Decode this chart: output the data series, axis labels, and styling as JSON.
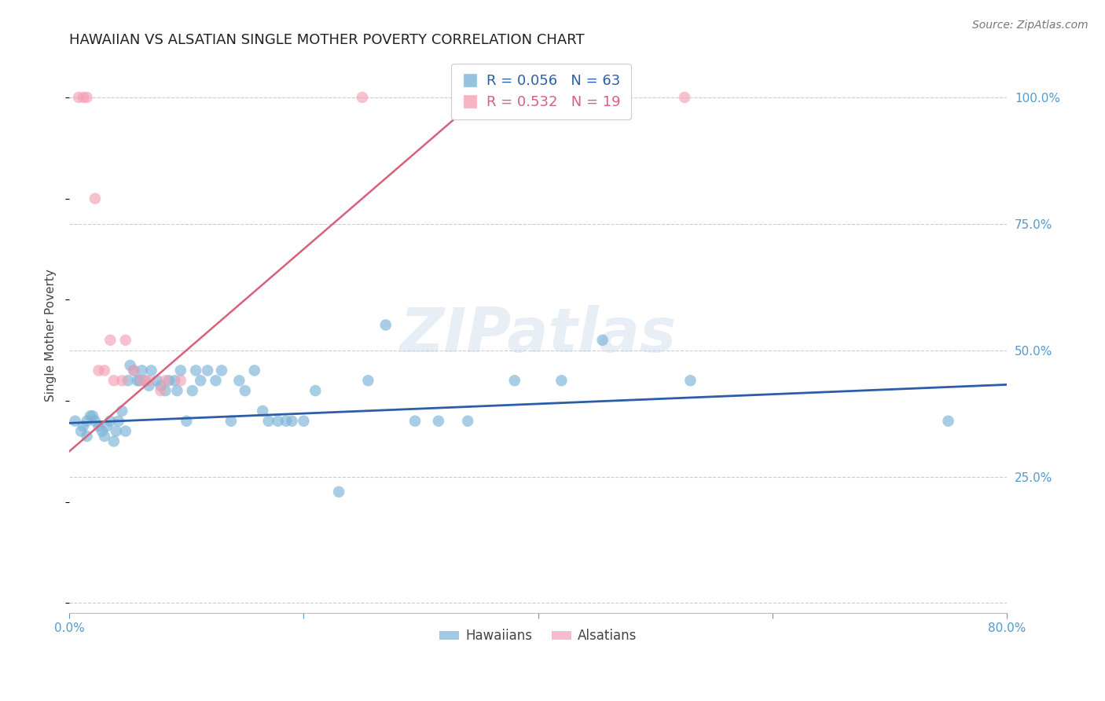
{
  "title": "HAWAIIAN VS ALSATIAN SINGLE MOTHER POVERTY CORRELATION CHART",
  "source": "Source: ZipAtlas.com",
  "ylabel": "Single Mother Poverty",
  "watermark": "ZIPatlas",
  "xlim": [
    0.0,
    0.8
  ],
  "ylim": [
    -0.02,
    1.08
  ],
  "xticks": [
    0.0,
    0.2,
    0.4,
    0.6,
    0.8
  ],
  "xticklabels": [
    "0.0%",
    "",
    "",
    "",
    "80.0%"
  ],
  "yticks_right": [
    0.25,
    0.5,
    0.75,
    1.0
  ],
  "yticklabels_right": [
    "25.0%",
    "50.0%",
    "75.0%",
    "100.0%"
  ],
  "legend_hawaiians": "Hawaiians",
  "legend_alsatians": "Alsatians",
  "R_hawaiian": 0.056,
  "N_hawaiian": 63,
  "R_alsatian": 0.532,
  "N_alsatian": 19,
  "hawaiian_color": "#7ab3d8",
  "alsatian_color": "#f4a0b5",
  "hawaiian_line_color": "#2b5ea7",
  "alsatian_line_color": "#d9607a",
  "background_color": "#ffffff",
  "title_fontsize": 13,
  "axis_label_fontsize": 11,
  "tick_fontsize": 11,
  "legend_fontsize": 13,
  "hawaiian_scatter_x": [
    0.005,
    0.01,
    0.012,
    0.015,
    0.015,
    0.018,
    0.02,
    0.022,
    0.025,
    0.028,
    0.03,
    0.032,
    0.035,
    0.038,
    0.04,
    0.042,
    0.045,
    0.048,
    0.05,
    0.052,
    0.055,
    0.058,
    0.06,
    0.062,
    0.065,
    0.068,
    0.07,
    0.075,
    0.078,
    0.082,
    0.085,
    0.09,
    0.092,
    0.095,
    0.1,
    0.105,
    0.108,
    0.112,
    0.118,
    0.125,
    0.13,
    0.138,
    0.145,
    0.15,
    0.158,
    0.165,
    0.17,
    0.178,
    0.185,
    0.19,
    0.2,
    0.21,
    0.23,
    0.255,
    0.27,
    0.295,
    0.315,
    0.34,
    0.38,
    0.42,
    0.455,
    0.53,
    0.75
  ],
  "hawaiian_scatter_y": [
    0.36,
    0.34,
    0.35,
    0.36,
    0.33,
    0.37,
    0.37,
    0.36,
    0.35,
    0.34,
    0.33,
    0.35,
    0.36,
    0.32,
    0.34,
    0.36,
    0.38,
    0.34,
    0.44,
    0.47,
    0.46,
    0.44,
    0.44,
    0.46,
    0.44,
    0.43,
    0.46,
    0.44,
    0.43,
    0.42,
    0.44,
    0.44,
    0.42,
    0.46,
    0.36,
    0.42,
    0.46,
    0.44,
    0.46,
    0.44,
    0.46,
    0.36,
    0.44,
    0.42,
    0.46,
    0.38,
    0.36,
    0.36,
    0.36,
    0.36,
    0.36,
    0.42,
    0.22,
    0.44,
    0.55,
    0.36,
    0.36,
    0.36,
    0.44,
    0.44,
    0.52,
    0.44,
    0.36
  ],
  "alsatian_scatter_x": [
    0.008,
    0.012,
    0.015,
    0.022,
    0.025,
    0.03,
    0.035,
    0.038,
    0.045,
    0.048,
    0.055,
    0.062,
    0.068,
    0.078,
    0.082,
    0.095,
    0.25,
    0.35,
    0.525
  ],
  "alsatian_scatter_y": [
    1.0,
    1.0,
    1.0,
    0.8,
    0.46,
    0.46,
    0.52,
    0.44,
    0.44,
    0.52,
    0.46,
    0.44,
    0.44,
    0.42,
    0.44,
    0.44,
    1.0,
    1.0,
    1.0
  ],
  "hawaiian_line_x": [
    0.0,
    0.8
  ],
  "hawaiian_line_y": [
    0.356,
    0.432
  ],
  "alsatian_line_x": [
    0.0,
    0.36
  ],
  "alsatian_line_y": [
    0.3,
    1.02
  ],
  "grid_color": "#cccccc",
  "grid_yticks": [
    0.0,
    0.25,
    0.5,
    0.75,
    1.0
  ]
}
